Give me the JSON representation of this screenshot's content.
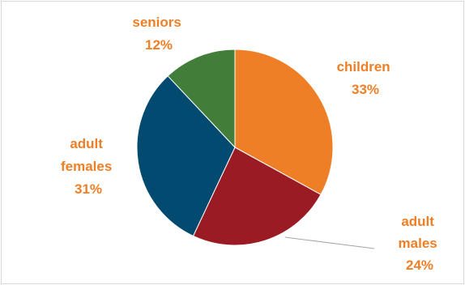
{
  "chart_data": {
    "type": "pie",
    "title": "",
    "slices": [
      {
        "name": "children",
        "value": 33,
        "label": "children",
        "pct": "33%",
        "color": "#ee7f26"
      },
      {
        "name": "adult males",
        "value": 24,
        "label": "adult males",
        "pct": "24%",
        "color": "#9b1b25"
      },
      {
        "name": "adult females",
        "value": 31,
        "label": "adult females",
        "pct": "31%",
        "color": "#034a70"
      },
      {
        "name": "seniors",
        "value": 12,
        "label": "seniors",
        "pct": "12%",
        "color": "#427e3a"
      }
    ],
    "label_color": "#ee7f26",
    "leader_line_color": "#a6a6a6",
    "start_angle": "12 o'clock",
    "direction": "clockwise",
    "legend": "none"
  }
}
